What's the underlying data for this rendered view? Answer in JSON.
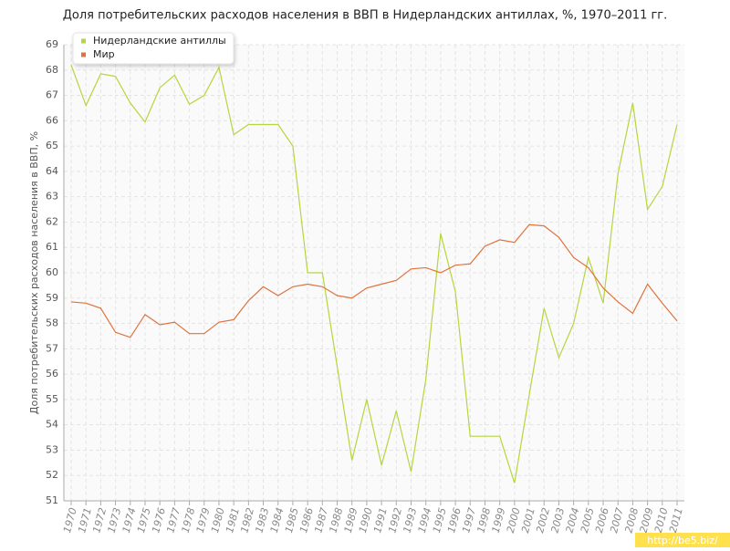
{
  "chart_data": {
    "type": "line",
    "title": "Доля потребительских расходов населения в ВВП в Нидерландских антиллах, %, 1970–2011 гг.",
    "y_label": "Доля потребительских расходов населения в ВВП, %",
    "watermark": "http://be5.biz/",
    "categories": [
      "1970",
      "1971",
      "1972",
      "1973",
      "1974",
      "1975",
      "1976",
      "1977",
      "1978",
      "1979",
      "1980",
      "1981",
      "1982",
      "1983",
      "1984",
      "1985",
      "1986",
      "1987",
      "1988",
      "1989",
      "1990",
      "1991",
      "1992",
      "1993",
      "1994",
      "1995",
      "1996",
      "1997",
      "1998",
      "1999",
      "2000",
      "2001",
      "2002",
      "2003",
      "2004",
      "2005",
      "2006",
      "2007",
      "2008",
      "2009",
      "2010",
      "2011"
    ],
    "series": [
      {
        "name": "Нидерландские антиллы",
        "color": "#b5d63d",
        "values": [
          68.2,
          66.6,
          67.85,
          67.75,
          66.7,
          65.95,
          67.3,
          67.8,
          66.65,
          67.0,
          68.1,
          65.45,
          65.85,
          65.85,
          65.85,
          65.0,
          60.0,
          60.0,
          56.3,
          52.6,
          55.0,
          52.4,
          54.55,
          52.15,
          55.8,
          61.55,
          59.25,
          53.55,
          53.55,
          53.55,
          51.7,
          55.2,
          58.6,
          56.65,
          58.0,
          60.6,
          58.8,
          63.9,
          66.7,
          62.5,
          63.4,
          65.85
        ]
      },
      {
        "name": "Мир",
        "color": "#e0733c",
        "values": [
          58.85,
          58.8,
          58.6,
          57.65,
          57.45,
          58.35,
          57.95,
          58.05,
          57.6,
          57.6,
          58.05,
          58.15,
          58.9,
          59.45,
          59.1,
          59.45,
          59.55,
          59.45,
          59.1,
          59.0,
          59.4,
          59.55,
          59.7,
          60.15,
          60.2,
          60.0,
          60.3,
          60.35,
          61.05,
          61.3,
          61.2,
          61.9,
          61.85,
          61.4,
          60.6,
          60.2,
          59.4,
          58.85,
          58.4,
          59.55,
          58.8,
          58.1
        ]
      }
    ],
    "ylim": [
      51,
      69
    ],
    "yticks": [
      51,
      52,
      53,
      54,
      55,
      56,
      57,
      58,
      59,
      60,
      61,
      62,
      63,
      64,
      65,
      66,
      67,
      68,
      69
    ],
    "grid": true,
    "legend": "top-left"
  }
}
